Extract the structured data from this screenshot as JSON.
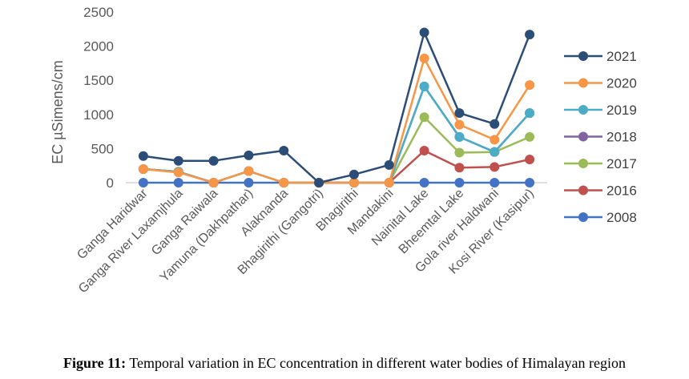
{
  "chart_data": {
    "type": "line",
    "ylabel": "EC µSimens/cm",
    "xlabel": "",
    "ylim": [
      0,
      2500
    ],
    "yticks": [
      0,
      500,
      1000,
      1500,
      2000,
      2500
    ],
    "grid": false,
    "legend_position": "right",
    "categories": [
      "Ganga Haridwar",
      "Ganga River Laxamjhula",
      "Ganga Raiwala",
      "Yamuna (Dakhpathar)",
      "Alaknanda",
      "Bhagirithi (Gangotri)",
      "Bhagirithi",
      "Mandakini",
      "Nainital Lake",
      "Bheemtal Lake",
      "Gola river Haldwani",
      "Kosi River (Kasipur)"
    ],
    "series": [
      {
        "name": "2008",
        "color": "#4472c4",
        "values": [
          0,
          0,
          0,
          0,
          0,
          0,
          0,
          0,
          0,
          0,
          0,
          0
        ]
      },
      {
        "name": "2016",
        "color": "#c0504d",
        "values": [
          200,
          160,
          0,
          170,
          0,
          0,
          0,
          0,
          470,
          220,
          230,
          340
        ]
      },
      {
        "name": "2017",
        "color": "#9bbb59",
        "values": [
          200,
          160,
          0,
          170,
          0,
          0,
          0,
          0,
          960,
          440,
          450,
          670
        ]
      },
      {
        "name": "2018",
        "color": "#8064a2",
        "values": [
          200,
          160,
          0,
          170,
          0,
          0,
          0,
          0,
          1410,
          670,
          450,
          1020
        ]
      },
      {
        "name": "2019",
        "color": "#4bacc6",
        "values": [
          200,
          160,
          0,
          170,
          0,
          0,
          0,
          0,
          1410,
          670,
          450,
          1020
        ]
      },
      {
        "name": "2020",
        "color": "#f79646",
        "values": [
          200,
          150,
          0,
          170,
          0,
          0,
          0,
          0,
          1820,
          850,
          630,
          1430
        ]
      },
      {
        "name": "2021",
        "color": "#2c4d75",
        "values": [
          390,
          320,
          320,
          400,
          470,
          0,
          120,
          260,
          2200,
          1020,
          860,
          2170
        ]
      }
    ],
    "legend_order": [
      "2021",
      "2020",
      "2019",
      "2018",
      "2017",
      "2016",
      "2008"
    ]
  },
  "caption": {
    "label": "Figure 11:",
    "text": " Temporal variation in EC concentration in different water bodies of Himalayan region"
  }
}
